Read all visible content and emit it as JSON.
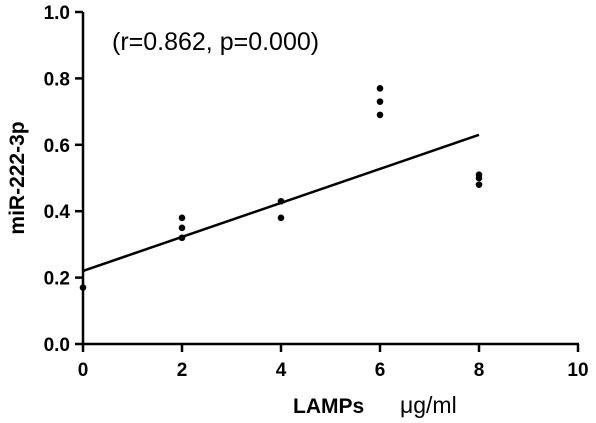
{
  "chart_data": {
    "type": "scatter",
    "title": "",
    "annotation": "(r=0.862,  p=0.000)",
    "xlabel": "LAMPs",
    "xunit": "μg/ml",
    "ylabel": "miR-222-3p",
    "xlim": [
      0,
      10
    ],
    "ylim": [
      0.0,
      1.0
    ],
    "xticks": [
      0,
      2,
      4,
      6,
      8,
      10
    ],
    "yticks": [
      0.0,
      0.2,
      0.4,
      0.6,
      0.8,
      1.0
    ],
    "xtick_labels": [
      "0",
      "2",
      "4",
      "6",
      "8",
      "10"
    ],
    "ytick_labels": [
      "0.0",
      "0.2",
      "0.4",
      "0.6",
      "0.8",
      "1.0"
    ],
    "grid": false,
    "series": [
      {
        "points": [
          {
            "x": 0,
            "y": 0.17
          },
          {
            "x": 2,
            "y": 0.38
          },
          {
            "x": 2,
            "y": 0.35
          },
          {
            "x": 2,
            "y": 0.32
          },
          {
            "x": 4,
            "y": 0.43
          },
          {
            "x": 4,
            "y": 0.38
          },
          {
            "x": 6,
            "y": 0.77
          },
          {
            "x": 6,
            "y": 0.73
          },
          {
            "x": 6,
            "y": 0.69
          },
          {
            "x": 8,
            "y": 0.51
          },
          {
            "x": 8,
            "y": 0.5
          },
          {
            "x": 8,
            "y": 0.48
          }
        ],
        "color": "#000000"
      }
    ],
    "fit_line": {
      "x": [
        0,
        8
      ],
      "y": [
        0.22,
        0.63
      ]
    }
  }
}
